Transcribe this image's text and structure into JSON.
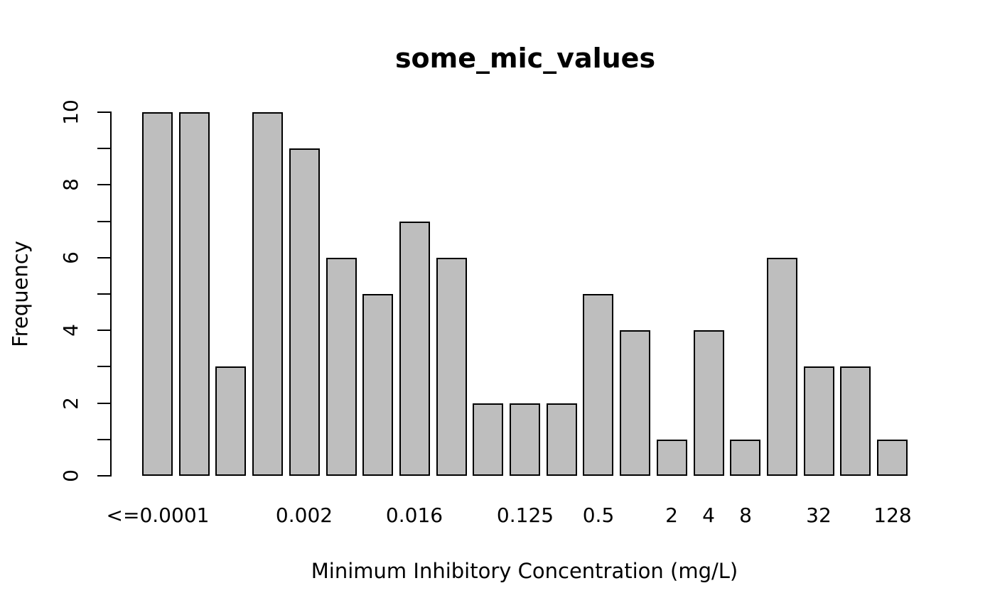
{
  "chart_data": {
    "type": "bar",
    "subtype": "histogram",
    "title": "some_mic_values",
    "xlabel": "Minimum Inhibitory Concentration (mg/L)",
    "ylabel": "Frequency",
    "ylim": [
      0,
      10
    ],
    "grid": false,
    "legend_position": "none",
    "background_color": "#ffffff",
    "bar_fill_color": "#bebebe",
    "bar_border_color": "#000000",
    "axis_color": "#000000",
    "bar_count": 21,
    "values": [
      10,
      10,
      3,
      10,
      9,
      6,
      5,
      7,
      6,
      2,
      2,
      2,
      5,
      4,
      1,
      4,
      1,
      6,
      3,
      3,
      1
    ],
    "y_ticks": {
      "minor_step": 1,
      "labeled_values": [
        0,
        2,
        4,
        6,
        8,
        10
      ],
      "labels": [
        "0",
        "2",
        "4",
        "6",
        "8",
        "10"
      ]
    },
    "x_tick_labels": [
      {
        "label": "<=0.0001",
        "bar_index": 0
      },
      {
        "label": "0.002",
        "bar_index": 4
      },
      {
        "label": "0.016",
        "bar_index": 7
      },
      {
        "label": "0.125",
        "bar_index": 10
      },
      {
        "label": "0.5",
        "bar_index": 12
      },
      {
        "label": "2",
        "bar_index": 14
      },
      {
        "label": "4",
        "bar_index": 15
      },
      {
        "label": "8",
        "bar_index": 16
      },
      {
        "label": "32",
        "bar_index": 18
      },
      {
        "label": "128",
        "bar_index": 20
      }
    ]
  }
}
